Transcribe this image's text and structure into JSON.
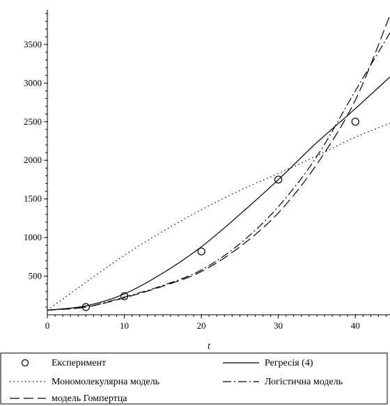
{
  "chart_data": {
    "type": "line",
    "title": "",
    "xlabel": "t",
    "ylabel": "",
    "xlim": [
      0,
      44.5
    ],
    "ylim": [
      0,
      3950
    ],
    "x_ticks": [
      0,
      10,
      20,
      30,
      40
    ],
    "y_ticks": [
      500,
      1000,
      1500,
      2000,
      2500,
      3000,
      3500
    ],
    "grid": false,
    "legend_position": "bottom",
    "series": [
      {
        "name": "Експеримент",
        "style": "markers",
        "x": [
          5,
          10,
          20,
          30,
          40
        ],
        "y": [
          100,
          240,
          820,
          1750,
          2500
        ]
      },
      {
        "name": "Регресія (4)",
        "style": "solid",
        "x": [
          0,
          5,
          10,
          15,
          20,
          25,
          30,
          35,
          40,
          44.5
        ],
        "y": [
          60,
          115,
          270,
          540,
          880,
          1300,
          1750,
          2230,
          2670,
          3080
        ]
      },
      {
        "name": "Мономолекулярна модель",
        "style": "dotted",
        "x": [
          0,
          5,
          10,
          15,
          20,
          25,
          30,
          35,
          40,
          44.5
        ],
        "y": [
          60,
          420,
          770,
          1080,
          1360,
          1610,
          1830,
          2060,
          2300,
          2480
        ]
      },
      {
        "name": "Логістична модель",
        "style": "dashdot",
        "x": [
          0,
          5,
          10,
          15,
          20,
          25,
          30,
          35,
          40,
          44.5
        ],
        "y": [
          60,
          100,
          230,
          380,
          580,
          920,
          1400,
          2050,
          2900,
          3650
        ]
      },
      {
        "name": "модель Гомпертца",
        "style": "dashed",
        "x": [
          0,
          5,
          10,
          15,
          20,
          25,
          30,
          35,
          40,
          44.5
        ],
        "y": [
          60,
          100,
          220,
          370,
          560,
          880,
          1320,
          1950,
          2780,
          3880
        ]
      }
    ]
  },
  "colors": {
    "line": "#000000",
    "background": "#ffffff"
  }
}
